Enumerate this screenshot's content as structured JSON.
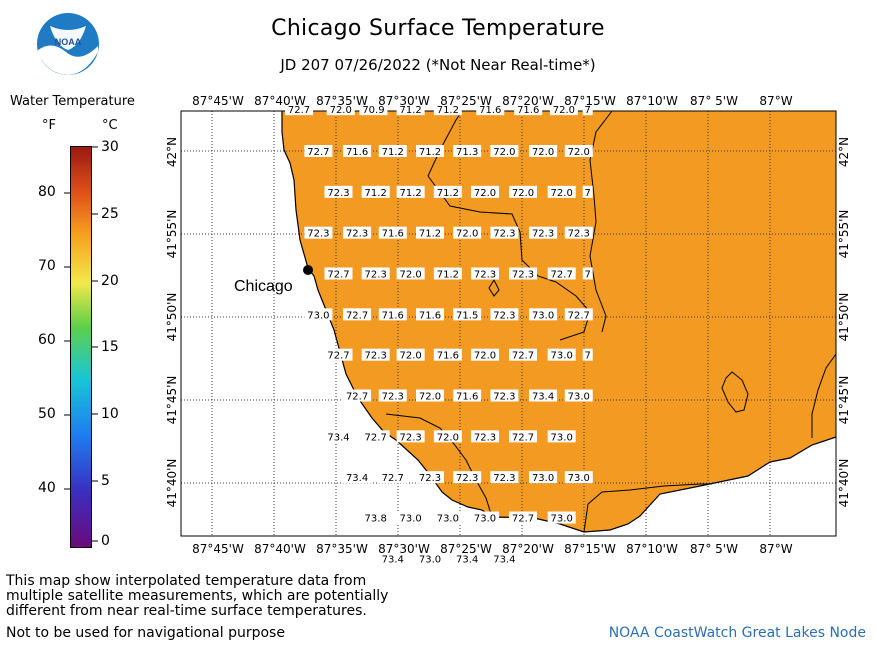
{
  "title": "Chicago Surface Temperature",
  "subtitle": "JD 207 07/26/2022 (*Not Near Real-time*)",
  "logo_text": "NOAA",
  "legend": {
    "title": "Water Temperature",
    "unit_f": "°F",
    "unit_c": "°C",
    "f_ticks": [
      "80",
      "70",
      "60",
      "50",
      "40"
    ],
    "c_ticks": [
      "30",
      "25",
      "20",
      "15",
      "10",
      "5",
      "0"
    ]
  },
  "map": {
    "lon_labels": [
      "87°45'W",
      "87°40'W",
      "87°35'W",
      "87°30'W",
      "87°25'W",
      "87°20'W",
      "87°15'W",
      "87°10'W",
      "87° 5'W",
      "87°W"
    ],
    "lat_labels": [
      "42°N",
      "41°55'N",
      "41°50'N",
      "41°45'N",
      "41°40'N"
    ],
    "city": "Chicago",
    "water_color": "#f39a22",
    "temperature_labels": [
      {
        "t": "72.7",
        "lon": -87.633,
        "lat": 42.042
      },
      {
        "t": "72.0",
        "lon": -87.577,
        "lat": 42.042
      },
      {
        "t": "70.9",
        "lon": -87.533,
        "lat": 42.042
      },
      {
        "t": "71.2",
        "lon": -87.483,
        "lat": 42.042
      },
      {
        "t": "71.2",
        "lon": -87.433,
        "lat": 42.042
      },
      {
        "t": "71.6",
        "lon": -87.376,
        "lat": 42.042
      },
      {
        "t": "71.6",
        "lon": -87.325,
        "lat": 42.042
      },
      {
        "t": "72.0",
        "lon": -87.277,
        "lat": 42.042
      },
      {
        "t": "7",
        "lon": -87.245,
        "lat": 42.042
      },
      {
        "t": "72.7",
        "lon": -87.607,
        "lat": 42.0
      },
      {
        "t": "71.6",
        "lon": -87.555,
        "lat": 42.0
      },
      {
        "t": "71.2",
        "lon": -87.507,
        "lat": 42.0
      },
      {
        "t": "71.2",
        "lon": -87.457,
        "lat": 42.0
      },
      {
        "t": "71.3",
        "lon": -87.407,
        "lat": 42.0
      },
      {
        "t": "72.0",
        "lon": -87.357,
        "lat": 42.0
      },
      {
        "t": "72.0",
        "lon": -87.305,
        "lat": 42.0
      },
      {
        "t": "72.0",
        "lon": -87.257,
        "lat": 42.0
      },
      {
        "t": "72.3",
        "lon": -87.58,
        "lat": 41.959
      },
      {
        "t": "71.2",
        "lon": -87.53,
        "lat": 41.959
      },
      {
        "t": "71.2",
        "lon": -87.483,
        "lat": 41.959
      },
      {
        "t": "71.2",
        "lon": -87.433,
        "lat": 41.959
      },
      {
        "t": "72.0",
        "lon": -87.383,
        "lat": 41.959
      },
      {
        "t": "72.0",
        "lon": -87.332,
        "lat": 41.959
      },
      {
        "t": "72.0",
        "lon": -87.28,
        "lat": 41.959
      },
      {
        "t": "7",
        "lon": -87.245,
        "lat": 41.959
      },
      {
        "t": "72.3",
        "lon": -87.607,
        "lat": 41.918
      },
      {
        "t": "72.3",
        "lon": -87.555,
        "lat": 41.918
      },
      {
        "t": "71.6",
        "lon": -87.507,
        "lat": 41.918
      },
      {
        "t": "71.2",
        "lon": -87.457,
        "lat": 41.918
      },
      {
        "t": "72.0",
        "lon": -87.407,
        "lat": 41.918
      },
      {
        "t": "72.3",
        "lon": -87.357,
        "lat": 41.918
      },
      {
        "t": "72.3",
        "lon": -87.305,
        "lat": 41.918
      },
      {
        "t": "72.3",
        "lon": -87.257,
        "lat": 41.918
      },
      {
        "t": "72.7",
        "lon": -87.58,
        "lat": 41.877
      },
      {
        "t": "72.3",
        "lon": -87.53,
        "lat": 41.877
      },
      {
        "t": "72.0",
        "lon": -87.483,
        "lat": 41.877
      },
      {
        "t": "71.2",
        "lon": -87.433,
        "lat": 41.877
      },
      {
        "t": "72.3",
        "lon": -87.383,
        "lat": 41.877
      },
      {
        "t": "72.3",
        "lon": -87.332,
        "lat": 41.877
      },
      {
        "t": "72.7",
        "lon": -87.28,
        "lat": 41.877
      },
      {
        "t": "7",
        "lon": -87.245,
        "lat": 41.877
      },
      {
        "t": "73.0",
        "lon": -87.607,
        "lat": 41.836
      },
      {
        "t": "72.7",
        "lon": -87.555,
        "lat": 41.836
      },
      {
        "t": "71.6",
        "lon": -87.507,
        "lat": 41.836
      },
      {
        "t": "71.6",
        "lon": -87.457,
        "lat": 41.836
      },
      {
        "t": "71.5",
        "lon": -87.407,
        "lat": 41.836
      },
      {
        "t": "72.3",
        "lon": -87.357,
        "lat": 41.836
      },
      {
        "t": "73.0",
        "lon": -87.305,
        "lat": 41.836
      },
      {
        "t": "72.7",
        "lon": -87.257,
        "lat": 41.836
      },
      {
        "t": "72.7",
        "lon": -87.58,
        "lat": 41.7955
      },
      {
        "t": "72.3",
        "lon": -87.53,
        "lat": 41.7955
      },
      {
        "t": "72.0",
        "lon": -87.483,
        "lat": 41.7955
      },
      {
        "t": "71.6",
        "lon": -87.433,
        "lat": 41.7955
      },
      {
        "t": "72.0",
        "lon": -87.383,
        "lat": 41.7955
      },
      {
        "t": "72.7",
        "lon": -87.332,
        "lat": 41.7955
      },
      {
        "t": "73.0",
        "lon": -87.28,
        "lat": 41.7955
      },
      {
        "t": "7",
        "lon": -87.245,
        "lat": 41.7955
      },
      {
        "t": "72.7",
        "lon": -87.555,
        "lat": 41.7545
      },
      {
        "t": "72.3",
        "lon": -87.507,
        "lat": 41.7545
      },
      {
        "t": "72.0",
        "lon": -87.457,
        "lat": 41.7545
      },
      {
        "t": "71.6",
        "lon": -87.407,
        "lat": 41.7545
      },
      {
        "t": "72.3",
        "lon": -87.357,
        "lat": 41.7545
      },
      {
        "t": "73.4",
        "lon": -87.305,
        "lat": 41.7545
      },
      {
        "t": "73.0",
        "lon": -87.257,
        "lat": 41.7545
      },
      {
        "t": "73.4",
        "lon": -87.58,
        "lat": 41.7135
      },
      {
        "t": "72.7",
        "lon": -87.53,
        "lat": 41.7135
      },
      {
        "t": "72.3",
        "lon": -87.483,
        "lat": 41.7135
      },
      {
        "t": "72.0",
        "lon": -87.433,
        "lat": 41.7135
      },
      {
        "t": "72.3",
        "lon": -87.383,
        "lat": 41.7135
      },
      {
        "t": "72.7",
        "lon": -87.332,
        "lat": 41.7135
      },
      {
        "t": "73.0",
        "lon": -87.28,
        "lat": 41.7135
      },
      {
        "t": "73.4",
        "lon": -87.555,
        "lat": 41.6725
      },
      {
        "t": "72.7",
        "lon": -87.507,
        "lat": 41.6725
      },
      {
        "t": "72.3",
        "lon": -87.457,
        "lat": 41.6725
      },
      {
        "t": "72.3",
        "lon": -87.407,
        "lat": 41.6725
      },
      {
        "t": "72.3",
        "lon": -87.357,
        "lat": 41.6725
      },
      {
        "t": "73.0",
        "lon": -87.305,
        "lat": 41.6725
      },
      {
        "t": "73.0",
        "lon": -87.257,
        "lat": 41.6725
      },
      {
        "t": "73.8",
        "lon": -87.53,
        "lat": 41.632
      },
      {
        "t": "73.0",
        "lon": -87.483,
        "lat": 41.632
      },
      {
        "t": "73.0",
        "lon": -87.433,
        "lat": 41.632
      },
      {
        "t": "73.0",
        "lon": -87.383,
        "lat": 41.632
      },
      {
        "t": "72.7",
        "lon": -87.332,
        "lat": 41.632
      },
      {
        "t": "73.0",
        "lon": -87.28,
        "lat": 41.632
      },
      {
        "t": "73.4",
        "lon": -87.507,
        "lat": 41.591
      },
      {
        "t": "73.0",
        "lon": -87.457,
        "lat": 41.591
      },
      {
        "t": "73.4",
        "lon": -87.407,
        "lat": 41.591
      },
      {
        "t": "73.4",
        "lon": -87.357,
        "lat": 41.591
      }
    ]
  },
  "footnote": "This map show interpolated temperature data from\nmultiple satellite measurements, which are potentially\ndifferent from near real-time surface temperatures.",
  "nav_warning": "Not to be used for navigational purpose",
  "credit": "NOAA CoastWatch Great Lakes Node"
}
